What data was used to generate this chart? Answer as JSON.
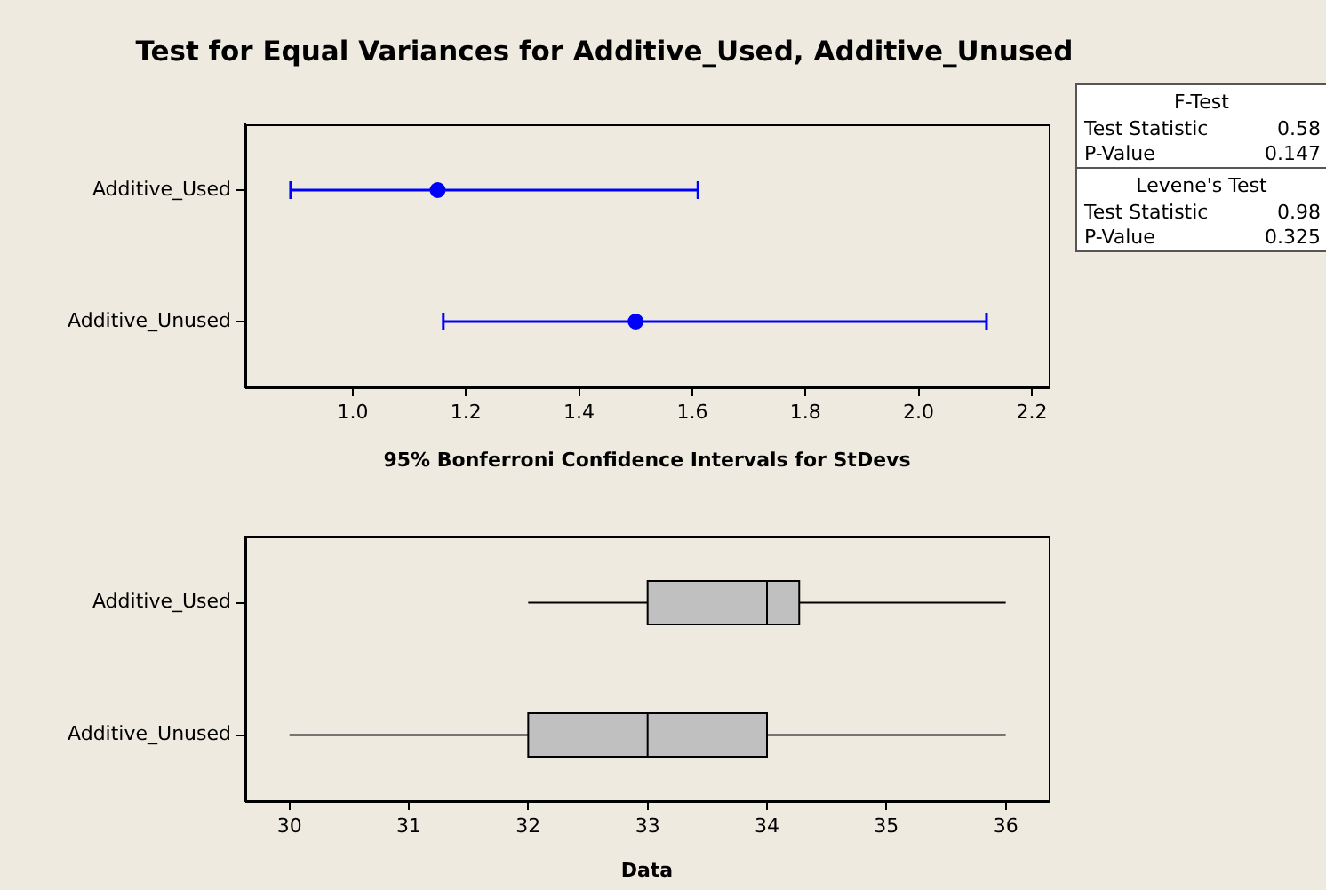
{
  "chart_data": [
    {
      "type": "scatter",
      "title": "Test for Equal Variances for Additive_Used, Additive_Unused",
      "orientation": "horizontal",
      "categories": [
        "Additive_Used",
        "Additive_Unused"
      ],
      "values": [
        1.15,
        1.5
      ],
      "errors": [
        [
          0.89,
          1.61
        ],
        [
          1.16,
          2.12
        ]
      ],
      "color": "#0000ff",
      "marker": "circle",
      "xlabel": "95% Bonferroni Confidence Intervals for StDevs",
      "xlim": [
        0.81,
        2.23
      ],
      "xticks": [
        {
          "value": 1,
          "label": "1.0"
        },
        {
          "value": 1.2,
          "label": "1.2"
        },
        {
          "value": 1.4,
          "label": "1.4"
        },
        {
          "value": 1.6,
          "label": "1.6"
        },
        {
          "value": 1.8,
          "label": "1.8"
        },
        {
          "value": 2,
          "label": "2.0"
        },
        {
          "value": 2.2,
          "label": "2.2"
        }
      ],
      "grid": false,
      "legend": false
    },
    {
      "type": "box",
      "orientation": "horizontal",
      "categories": [
        "Additive_Used",
        "Additive_Unused"
      ],
      "color": "#c0c0c0",
      "boxes": [
        {
          "low": 32,
          "q1": 33,
          "median": 34,
          "q3": 34.27,
          "high": 36
        },
        {
          "low": 30,
          "q1": 32,
          "median": 33,
          "q3": 34,
          "high": 36
        }
      ],
      "xlabel": "Data",
      "xlim": [
        29.63,
        36.36
      ],
      "xticks": [
        30,
        31,
        32,
        33,
        34,
        35,
        36
      ],
      "grid": false,
      "legend": false
    },
    {
      "type": "other",
      "title": "F-Test",
      "annotations": [
        "Test Statistic",
        "0.58",
        "P-Value",
        "0.147"
      ]
    },
    {
      "type": "other",
      "title": "Levene's Test",
      "annotations": [
        "Test Statistic",
        "0.98",
        "P-Value",
        "0.325"
      ]
    }
  ]
}
